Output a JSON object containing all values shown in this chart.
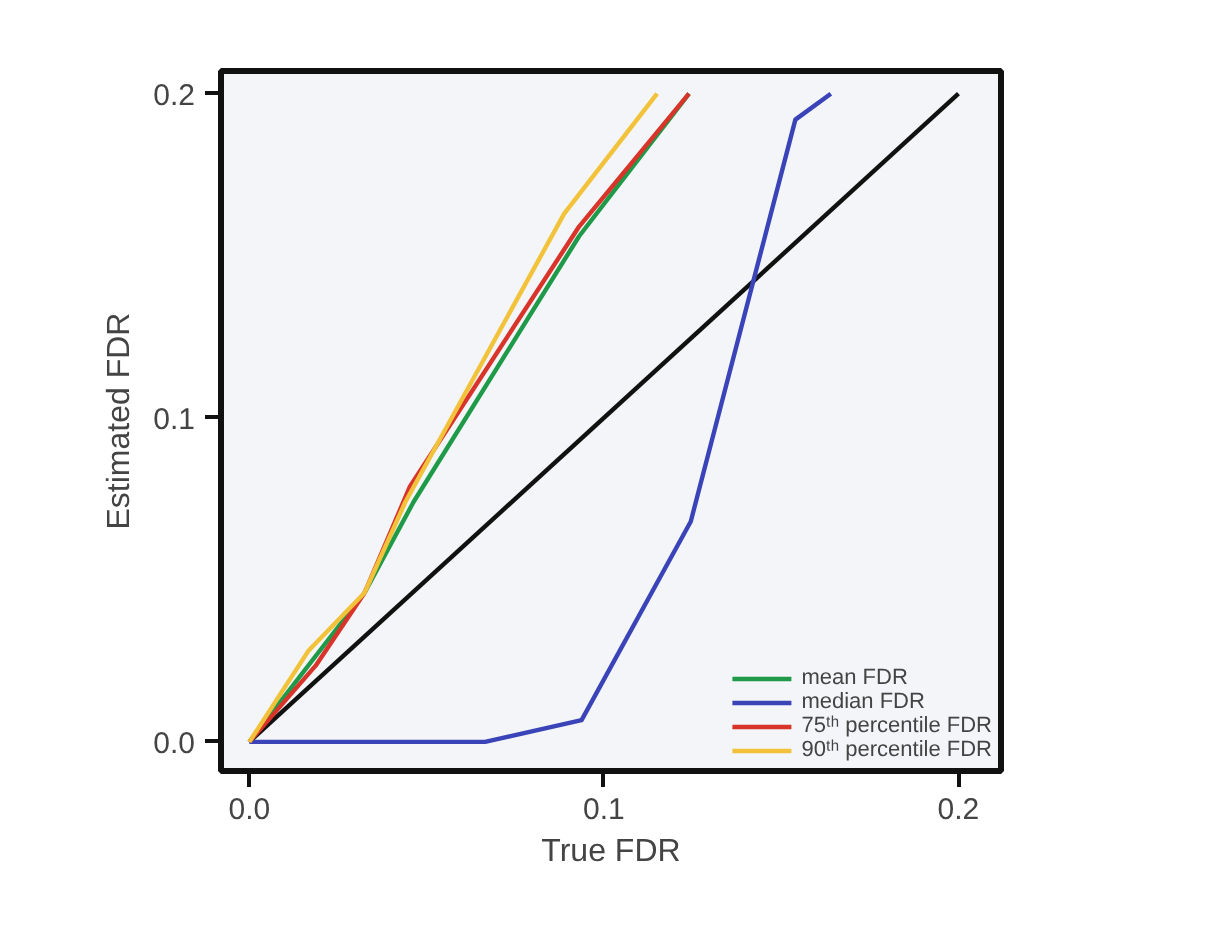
{
  "chart_data": {
    "type": "line",
    "xlabel": "True FDR",
    "ylabel": "Estimated FDR",
    "xlim": [
      -0.008,
      0.212
    ],
    "ylim": [
      -0.009,
      0.207
    ],
    "xticks": [
      {
        "value": 0,
        "label": "0.0"
      },
      {
        "value": 0.1,
        "label": "0.1"
      },
      {
        "value": 0.2,
        "label": "0.2"
      }
    ],
    "yticks": [
      {
        "value": 0,
        "label": "0.0"
      },
      {
        "value": 0.1,
        "label": "0.1"
      },
      {
        "value": 0.2,
        "label": "0.2"
      }
    ],
    "grid": false,
    "legend": "bottom right",
    "marker": "none",
    "line_style": "solid",
    "series": [
      {
        "color": "#111111",
        "x": [
          0,
          0.2
        ],
        "values": [
          0,
          0.2
        ]
      },
      {
        "name": "mean FDR",
        "color": "#1e9a48",
        "x": [
          0,
          0.0325,
          0.0463,
          0.093,
          0.124
        ],
        "values": [
          0,
          0.046,
          0.074,
          0.156,
          0.2
        ]
      },
      {
        "name": "median FDR",
        "color": "#3a44b8",
        "x": [
          0,
          0.0665,
          0.0937,
          0.1245,
          0.154,
          0.164
        ],
        "values": [
          0,
          0,
          0.0067,
          0.068,
          0.192,
          0.2
        ]
      },
      {
        "name": "75ᵗʰ percentile FDR",
        "color": "#d8342a",
        "x": [
          0,
          0.0187,
          0.0325,
          0.0453,
          0.093,
          0.124
        ],
        "values": [
          0,
          0.0235,
          0.046,
          0.0788,
          0.159,
          0.2
        ]
      },
      {
        "name": "90ᵗʰ percentile FDR",
        "color": "#f2c33a",
        "x": [
          0,
          0.0166,
          0.0325,
          0.044,
          0.0888,
          0.115
        ],
        "values": [
          0,
          0.028,
          0.046,
          0.074,
          0.163,
          0.2
        ]
      }
    ]
  }
}
